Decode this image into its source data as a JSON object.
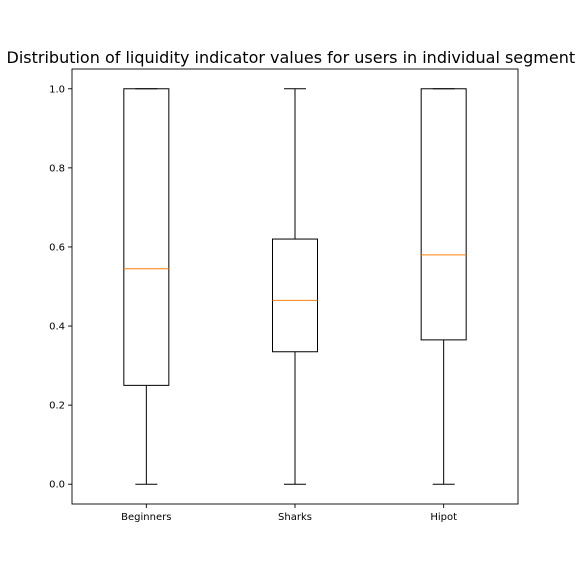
{
  "chart_data": {
    "type": "box",
    "title": "Distribution of liquidity indicator values for users in individual segments",
    "xlabel": "",
    "ylabel": "",
    "ylim": [
      -0.05,
      1.05
    ],
    "grid": false,
    "y_ticks": [
      0.0,
      0.2,
      0.4,
      0.6,
      0.8,
      1.0
    ],
    "y_tick_labels": [
      "0.0",
      "0.2",
      "0.4",
      "0.6",
      "0.8",
      "1.0"
    ],
    "categories": [
      "Beginners",
      "Sharks",
      "Hipot"
    ],
    "boxes": [
      {
        "category": "Beginners",
        "whisker_low": 0.0,
        "q1": 0.25,
        "median": 0.545,
        "q3": 1.0,
        "whisker_high": 1.0
      },
      {
        "category": "Sharks",
        "whisker_low": 0.0,
        "q1": 0.335,
        "median": 0.465,
        "q3": 0.62,
        "whisker_high": 1.0
      },
      {
        "category": "Hipot",
        "whisker_low": 0.0,
        "q1": 0.365,
        "median": 0.58,
        "q3": 1.0,
        "whisker_high": 1.0
      }
    ],
    "colors": {
      "box": "#000000",
      "median": "#ff7f0e",
      "axes": "#000000",
      "background": "#ffffff"
    }
  }
}
